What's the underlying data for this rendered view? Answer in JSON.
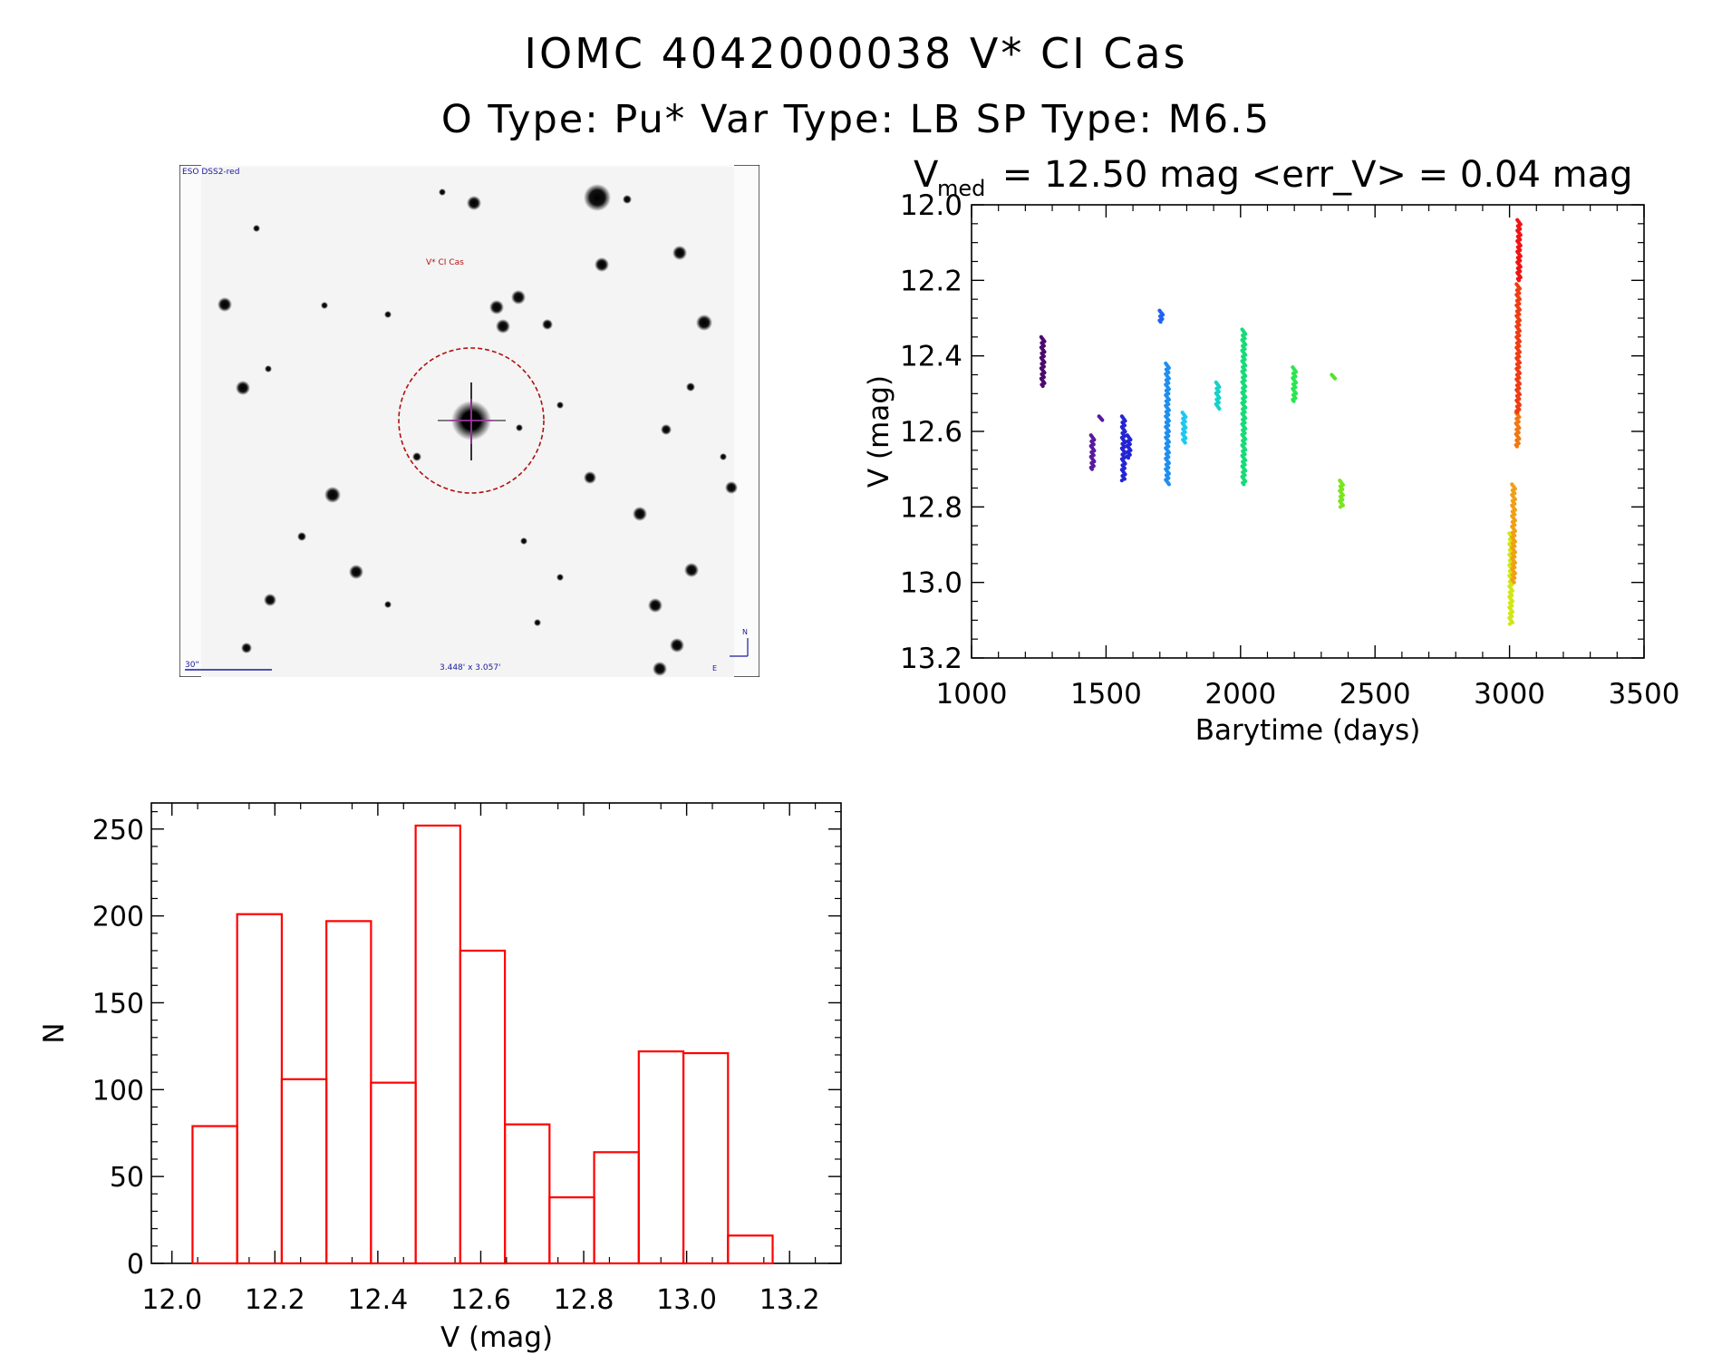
{
  "header": {
    "title_line1": "IOMC 4042000038    V* CI Cas",
    "title_line2": "O Type: Pu*  Var Type: LB  SP Type: M6.5"
  },
  "stamp": {
    "survey_label": "ESO DSS2-red",
    "target_label": "V* CI Cas",
    "scale_label": "30\"",
    "fov_label": "3.448' x 3.057'",
    "north_label": "N",
    "east_label": "E"
  },
  "chart_data": [
    {
      "type": "scatter",
      "title_prefix": "V",
      "title_subscript": "med",
      "title_rest": " = 12.50 mag <err_V> = 0.04 mag",
      "xlabel": "Barytime (days)",
      "ylabel": "V (mag)",
      "xlim": [
        1000,
        3500
      ],
      "ylim": [
        13.2,
        12.0
      ],
      "xticks": [
        "1000",
        "1500",
        "2000",
        "2500",
        "3000",
        "3500"
      ],
      "yticks": [
        "12.0",
        "12.2",
        "12.4",
        "12.6",
        "12.8",
        "13.0",
        "13.2"
      ],
      "clusters": [
        {
          "x": 1265,
          "ymin": 12.35,
          "ymax": 12.48,
          "color": "#4b0a6e"
        },
        {
          "x": 1450,
          "ymin": 12.61,
          "ymax": 12.7,
          "color": "#5a1a9e"
        },
        {
          "x": 1480,
          "ymin": 12.56,
          "ymax": 12.57,
          "color": "#5a1a9e"
        },
        {
          "x": 1565,
          "ymin": 12.56,
          "ymax": 12.73,
          "color": "#2424d6"
        },
        {
          "x": 1585,
          "ymin": 12.61,
          "ymax": 12.67,
          "color": "#2424d6"
        },
        {
          "x": 1705,
          "ymin": 12.28,
          "ymax": 12.31,
          "color": "#1e64f0"
        },
        {
          "x": 1728,
          "ymin": 12.42,
          "ymax": 12.74,
          "color": "#1e8ef0"
        },
        {
          "x": 1790,
          "ymin": 12.55,
          "ymax": 12.63,
          "color": "#1ec8f0"
        },
        {
          "x": 1915,
          "ymin": 12.47,
          "ymax": 12.54,
          "color": "#14d2c8"
        },
        {
          "x": 2012,
          "ymin": 12.33,
          "ymax": 12.74,
          "color": "#14dc78"
        },
        {
          "x": 2200,
          "ymin": 12.43,
          "ymax": 12.52,
          "color": "#28e650"
        },
        {
          "x": 2345,
          "ymin": 12.45,
          "ymax": 12.46,
          "color": "#50e628"
        },
        {
          "x": 2375,
          "ymin": 12.73,
          "ymax": 12.8,
          "color": "#78e61e"
        },
        {
          "x": 3005,
          "ymin": 12.87,
          "ymax": 13.11,
          "color": "#d2e614"
        },
        {
          "x": 3015,
          "ymin": 12.74,
          "ymax": 13.0,
          "color": "#f0a014"
        },
        {
          "x": 3030,
          "ymin": 12.55,
          "ymax": 12.64,
          "color": "#f07814"
        },
        {
          "x": 3032,
          "ymin": 12.21,
          "ymax": 12.55,
          "color": "#f03c14"
        },
        {
          "x": 3035,
          "ymin": 12.04,
          "ymax": 12.2,
          "color": "#f01414"
        }
      ]
    },
    {
      "type": "bar",
      "style": "histogram-outline",
      "xlabel": "V (mag)",
      "ylabel": "N",
      "xlim": [
        11.96,
        13.3
      ],
      "ylim": [
        0,
        265
      ],
      "xticks": [
        "12.0",
        "12.2",
        "12.4",
        "12.6",
        "12.8",
        "13.0",
        "13.2"
      ],
      "yticks": [
        "0",
        "50",
        "100",
        "150",
        "200",
        "250"
      ],
      "bin_start": 12.04,
      "bin_width": 0.0867,
      "values": [
        79,
        201,
        106,
        197,
        104,
        252,
        180,
        80,
        38,
        64,
        122,
        121,
        16
      ],
      "color": "#ff0000"
    }
  ]
}
